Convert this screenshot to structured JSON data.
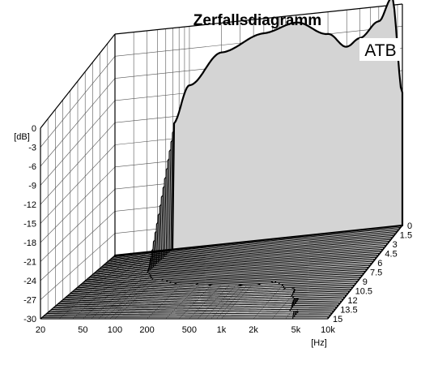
{
  "chart_data": {
    "type": "waterfall",
    "title": "Zerfallsdiagramm",
    "label_box": "ATB",
    "ylabel": "[dB]",
    "xlabel": "[Hz]",
    "x_scale": "log",
    "x_range": [
      20,
      10000
    ],
    "x_ticks": [
      "20",
      "50",
      "100",
      "200",
      "500",
      "1k",
      "2k",
      "5k",
      "10k"
    ],
    "y_range": [
      -30,
      0
    ],
    "y_ticks": [
      "0",
      "-3",
      "-6",
      "-9",
      "-12",
      "-15",
      "-18",
      "-21",
      "-24",
      "-27",
      "-30"
    ],
    "z_range": [
      0,
      15
    ],
    "z_ticks": [
      "0",
      "1.5",
      "3",
      "4.5",
      "6",
      "7.5",
      "9",
      "10.5",
      "12",
      "13.5",
      "15"
    ],
    "first_slice_db": [
      {
        "hz": 70,
        "db": -13
      },
      {
        "hz": 100,
        "db": -8
      },
      {
        "hz": 200,
        "db": -4
      },
      {
        "hz": 500,
        "db": -2
      },
      {
        "hz": 1000,
        "db": -1
      },
      {
        "hz": 2000,
        "db": -3
      },
      {
        "hz": 3000,
        "db": -5
      },
      {
        "hz": 4000,
        "db": -4
      },
      {
        "hz": 6000,
        "db": -2
      },
      {
        "hz": 8000,
        "db": 1
      },
      {
        "hz": 10000,
        "db": -12
      }
    ],
    "grid": true
  }
}
